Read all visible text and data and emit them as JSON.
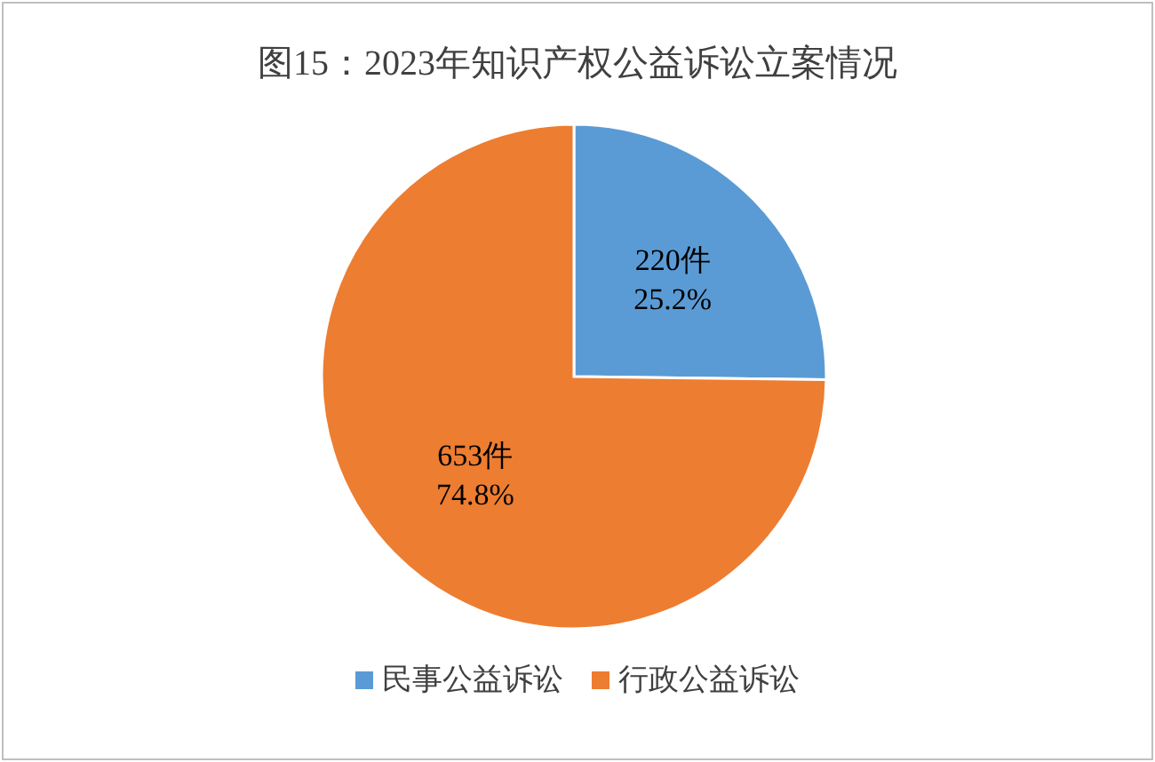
{
  "chart_data": {
    "type": "pie",
    "title": "图15：2023年知识产权公益诉讼立案情况",
    "categories": [
      "民事公益诉讼",
      "行政公益诉讼"
    ],
    "values": [
      220,
      653
    ],
    "colors": [
      "#5b9bd5",
      "#ed7d31"
    ],
    "value_labels": [
      "220件\n25.2%",
      "653件\n74.8%"
    ],
    "legend": "bottom"
  }
}
